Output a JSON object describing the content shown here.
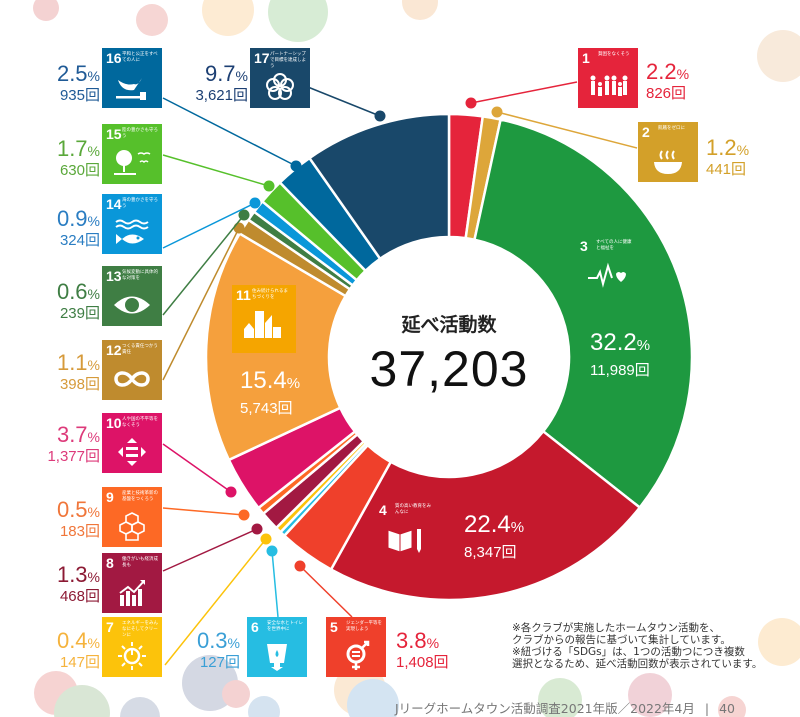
{
  "center": {
    "title": "延べ活動数",
    "total": "37,203"
  },
  "chart_data": {
    "type": "pie",
    "subtype": "donut",
    "title": "延べ活動数 37,203",
    "categories": [
      "SDG 1",
      "SDG 2",
      "SDG 3",
      "SDG 4",
      "SDG 5",
      "SDG 6",
      "SDG 7",
      "SDG 8",
      "SDG 9",
      "SDG 10",
      "SDG 11",
      "SDG 12",
      "SDG 13",
      "SDG 14",
      "SDG 15",
      "SDG 16",
      "SDG 17"
    ],
    "values": [
      826,
      441,
      11989,
      8347,
      1408,
      127,
      147,
      468,
      183,
      1377,
      5743,
      398,
      239,
      324,
      630,
      935,
      3621
    ],
    "percentages": [
      2.2,
      1.2,
      32.2,
      22.4,
      3.8,
      0.3,
      0.4,
      1.3,
      0.5,
      3.7,
      15.4,
      1.1,
      0.6,
      0.9,
      1.7,
      2.5,
      9.7
    ],
    "colors": [
      "#e5243b",
      "#dda63a",
      "#1e9940",
      "#c5192d",
      "#ef402b",
      "#26bde2",
      "#fcc30b",
      "#a21942",
      "#fd6925",
      "#dd1367",
      "#f5a03d",
      "#bf8b2e",
      "#3f7e44",
      "#0a97d9",
      "#56c02b",
      "#00689d",
      "#19486a"
    ],
    "start_angle": "12 o'clock",
    "direction": "clockwise",
    "total": 37203,
    "unit": "回"
  },
  "sdgs": [
    {
      "num": "1",
      "title": "貧困をなくそう",
      "pct": "2.2",
      "count": "826回",
      "color": "#e5243b",
      "text_color": "#e5243b",
      "icon": "people-family-icon"
    },
    {
      "num": "2",
      "title": "飢餓をゼロに",
      "pct": "1.2",
      "count": "441回",
      "color": "#d3a029",
      "text_color": "#d3a029",
      "icon": "bowl-icon"
    },
    {
      "num": "3",
      "title": "すべての人に健康と福祉を",
      "pct": "32.2",
      "count": "11,989回",
      "color": "#1e9940",
      "text_color": "#ffffff",
      "icon": "heartbeat-icon"
    },
    {
      "num": "4",
      "title": "質の高い教育をみんなに",
      "pct": "22.4",
      "count": "8,347回",
      "color": "#c5192d",
      "text_color": "#ffffff",
      "icon": "book-pencil-icon"
    },
    {
      "num": "5",
      "title": "ジェンダー平等を実現しよう",
      "pct": "3.8",
      "count": "1,408回",
      "color": "#ef402b",
      "text_color": "#e5243b",
      "icon": "gender-equality-icon"
    },
    {
      "num": "6",
      "title": "安全な水とトイレを世界中に",
      "pct": "0.3",
      "count": "127回",
      "color": "#26bde2",
      "text_color": "#3a9fd6",
      "icon": "water-glass-icon"
    },
    {
      "num": "7",
      "title": "エネルギーをみんなにそしてクリーンに",
      "pct": "0.4",
      "count": "147回",
      "color": "#fcc30b",
      "text_color": "#f5b33d",
      "icon": "sun-power-icon"
    },
    {
      "num": "8",
      "title": "働きがいも経済成長も",
      "pct": "1.3",
      "count": "468回",
      "color": "#a21942",
      "text_color": "#8c1a34",
      "icon": "growth-chart-icon"
    },
    {
      "num": "9",
      "title": "産業と技術革新の基盤をつくろう",
      "pct": "0.5",
      "count": "183回",
      "color": "#fd6925",
      "text_color": "#f0763a",
      "icon": "cubes-icon"
    },
    {
      "num": "10",
      "title": "人や国の不平等をなくそう",
      "pct": "3.7",
      "count": "1,377回",
      "color": "#dd1367",
      "text_color": "#dd3a7a",
      "icon": "equality-arrows-icon"
    },
    {
      "num": "11",
      "title": "住み続けられるまちづくりを",
      "pct": "15.4",
      "count": "5,743回",
      "color": "#f5a03d",
      "text_color": "#ffffff",
      "icon": "city-buildings-icon"
    },
    {
      "num": "12",
      "title": "つくる責任つかう責任",
      "pct": "1.1",
      "count": "398回",
      "color": "#bf8b2e",
      "text_color": "#d69a3a",
      "icon": "infinity-loop-icon"
    },
    {
      "num": "13",
      "title": "気候変動に具体的な対策を",
      "pct": "0.6",
      "count": "239回",
      "color": "#3f7e44",
      "text_color": "#3f7e44",
      "icon": "eye-globe-icon"
    },
    {
      "num": "14",
      "title": "海の豊かさを守ろう",
      "pct": "0.9",
      "count": "324回",
      "color": "#0a97d9",
      "text_color": "#2a7dc2",
      "icon": "fish-waves-icon"
    },
    {
      "num": "15",
      "title": "陸の豊かさも守ろう",
      "pct": "1.7",
      "count": "630回",
      "color": "#56c02b",
      "text_color": "#5aa83a",
      "icon": "tree-birds-icon"
    },
    {
      "num": "16",
      "title": "平和と公正をすべての人に",
      "pct": "2.5",
      "count": "935回",
      "color": "#00689d",
      "text_color": "#1f5a96",
      "icon": "dove-gavel-icon"
    },
    {
      "num": "17",
      "title": "パートナーシップで目標を達成しよう",
      "pct": "9.7",
      "count": "3,621回",
      "color": "#19486a",
      "text_color": "#1c3f73",
      "icon": "flower-rings-icon"
    }
  ],
  "percent_sign": "%",
  "notes": [
    "※各クラブが実施したホームタウン活動を、",
    "クラブからの報告に基づいて集計しています。",
    "※紐づける「SDGs」は、1つの活動つにつき複数",
    "選択となるため、延べ活動回数が表示されています。"
  ],
  "footer": {
    "title": "Jリーグホームタウン活動調査2021年版／2022年4月",
    "separator": "|",
    "page": "40"
  }
}
